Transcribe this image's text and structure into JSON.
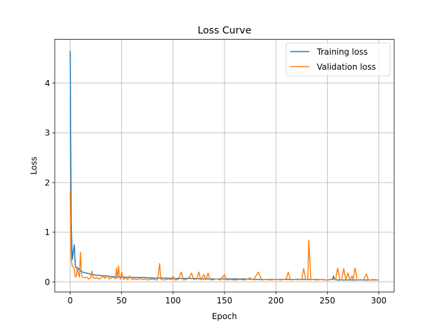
{
  "chart_data": {
    "type": "line",
    "title": "Loss Curve",
    "xlabel": "Epoch",
    "ylabel": "Loss",
    "xlim": [
      -15,
      315
    ],
    "ylim": [
      -0.2,
      4.88
    ],
    "xticks": [
      0,
      50,
      100,
      150,
      200,
      250,
      300
    ],
    "yticks": [
      0,
      1,
      2,
      3,
      4
    ],
    "grid": true,
    "legend_position": "top-right",
    "series": [
      {
        "name": "Training loss",
        "color": "#1f77b4",
        "points": [
          [
            0,
            4.65
          ],
          [
            1,
            1.2
          ],
          [
            2,
            0.45
          ],
          [
            3,
            0.6
          ],
          [
            4,
            0.75
          ],
          [
            5,
            0.32
          ],
          [
            6,
            0.28
          ],
          [
            7,
            0.3
          ],
          [
            8,
            0.25
          ],
          [
            9,
            0.27
          ],
          [
            10,
            0.22
          ],
          [
            12,
            0.2
          ],
          [
            15,
            0.18
          ],
          [
            18,
            0.17
          ],
          [
            20,
            0.15
          ],
          [
            25,
            0.14
          ],
          [
            30,
            0.13
          ],
          [
            35,
            0.12
          ],
          [
            40,
            0.11
          ],
          [
            45,
            0.1
          ],
          [
            50,
            0.1
          ],
          [
            60,
            0.09
          ],
          [
            70,
            0.09
          ],
          [
            80,
            0.08
          ],
          [
            90,
            0.08
          ],
          [
            100,
            0.07
          ],
          [
            110,
            0.07
          ],
          [
            120,
            0.07
          ],
          [
            130,
            0.06
          ],
          [
            140,
            0.06
          ],
          [
            150,
            0.06
          ],
          [
            160,
            0.06
          ],
          [
            170,
            0.06
          ],
          [
            180,
            0.05
          ],
          [
            190,
            0.05
          ],
          [
            200,
            0.05
          ],
          [
            210,
            0.05
          ],
          [
            220,
            0.05
          ],
          [
            230,
            0.05
          ],
          [
            240,
            0.05
          ],
          [
            250,
            0.04
          ],
          [
            255,
            0.05
          ],
          [
            256,
            0.12
          ],
          [
            257,
            0.05
          ],
          [
            260,
            0.04
          ],
          [
            270,
            0.04
          ],
          [
            280,
            0.04
          ],
          [
            290,
            0.04
          ],
          [
            300,
            0.04
          ]
        ]
      },
      {
        "name": "Validation loss",
        "color": "#ff7f0e",
        "points": [
          [
            0,
            1.83
          ],
          [
            1,
            0.45
          ],
          [
            2,
            0.32
          ],
          [
            3,
            0.3
          ],
          [
            4,
            0.25
          ],
          [
            5,
            0.1
          ],
          [
            6,
            0.12
          ],
          [
            7,
            0.3
          ],
          [
            8,
            0.15
          ],
          [
            9,
            0.1
          ],
          [
            10,
            0.6
          ],
          [
            11,
            0.15
          ],
          [
            12,
            0.1
          ],
          [
            14,
            0.08
          ],
          [
            16,
            0.1
          ],
          [
            18,
            0.06
          ],
          [
            20,
            0.08
          ],
          [
            21,
            0.22
          ],
          [
            22,
            0.1
          ],
          [
            24,
            0.07
          ],
          [
            26,
            0.09
          ],
          [
            28,
            0.06
          ],
          [
            30,
            0.08
          ],
          [
            32,
            0.12
          ],
          [
            34,
            0.07
          ],
          [
            36,
            0.13
          ],
          [
            38,
            0.06
          ],
          [
            40,
            0.08
          ],
          [
            42,
            0.1
          ],
          [
            44,
            0.06
          ],
          [
            45,
            0.28
          ],
          [
            46,
            0.08
          ],
          [
            47,
            0.32
          ],
          [
            48,
            0.1
          ],
          [
            49,
            0.06
          ],
          [
            50,
            0.2
          ],
          [
            52,
            0.05
          ],
          [
            54,
            0.09
          ],
          [
            56,
            0.04
          ],
          [
            58,
            0.12
          ],
          [
            60,
            0.05
          ],
          [
            62,
            0.06
          ],
          [
            65,
            0.05
          ],
          [
            68,
            0.07
          ],
          [
            70,
            0.05
          ],
          [
            73,
            0.06
          ],
          [
            76,
            0.04
          ],
          [
            79,
            0.06
          ],
          [
            82,
            0.05
          ],
          [
            85,
            0.04
          ],
          [
            87,
            0.37
          ],
          [
            88,
            0.06
          ],
          [
            90,
            0.04
          ],
          [
            93,
            0.05
          ],
          [
            96,
            0.06
          ],
          [
            99,
            0.05
          ],
          [
            100,
            0.12
          ],
          [
            102,
            0.04
          ],
          [
            105,
            0.05
          ],
          [
            108,
            0.2
          ],
          [
            110,
            0.04
          ],
          [
            113,
            0.05
          ],
          [
            116,
            0.1
          ],
          [
            118,
            0.18
          ],
          [
            120,
            0.05
          ],
          [
            123,
            0.06
          ],
          [
            125,
            0.2
          ],
          [
            127,
            0.04
          ],
          [
            130,
            0.15
          ],
          [
            132,
            0.05
          ],
          [
            134,
            0.18
          ],
          [
            136,
            0.05
          ],
          [
            138,
            0.04
          ],
          [
            140,
            0.05
          ],
          [
            143,
            0.06
          ],
          [
            146,
            0.04
          ],
          [
            150,
            0.15
          ],
          [
            152,
            0.04
          ],
          [
            155,
            0.05
          ],
          [
            160,
            0.04
          ],
          [
            165,
            0.05
          ],
          [
            170,
            0.04
          ],
          [
            172,
            0.06
          ],
          [
            175,
            0.08
          ],
          [
            178,
            0.04
          ],
          [
            180,
            0.1
          ],
          [
            183,
            0.2
          ],
          [
            186,
            0.04
          ],
          [
            190,
            0.05
          ],
          [
            195,
            0.04
          ],
          [
            200,
            0.05
          ],
          [
            205,
            0.04
          ],
          [
            210,
            0.06
          ],
          [
            212,
            0.2
          ],
          [
            214,
            0.04
          ],
          [
            218,
            0.05
          ],
          [
            222,
            0.06
          ],
          [
            225,
            0.04
          ],
          [
            227,
            0.27
          ],
          [
            229,
            0.05
          ],
          [
            231,
            0.04
          ],
          [
            232,
            0.84
          ],
          [
            234,
            0.04
          ],
          [
            236,
            0.05
          ],
          [
            240,
            0.04
          ],
          [
            245,
            0.05
          ],
          [
            250,
            0.04
          ],
          [
            255,
            0.06
          ],
          [
            258,
            0.04
          ],
          [
            260,
            0.28
          ],
          [
            262,
            0.05
          ],
          [
            264,
            0.04
          ],
          [
            266,
            0.27
          ],
          [
            268,
            0.04
          ],
          [
            270,
            0.18
          ],
          [
            272,
            0.04
          ],
          [
            274,
            0.12
          ],
          [
            275,
            0.05
          ],
          [
            277,
            0.28
          ],
          [
            279,
            0.04
          ],
          [
            282,
            0.05
          ],
          [
            285,
            0.04
          ],
          [
            288,
            0.16
          ],
          [
            290,
            0.04
          ],
          [
            295,
            0.05
          ],
          [
            300,
            0.04
          ]
        ]
      }
    ]
  }
}
